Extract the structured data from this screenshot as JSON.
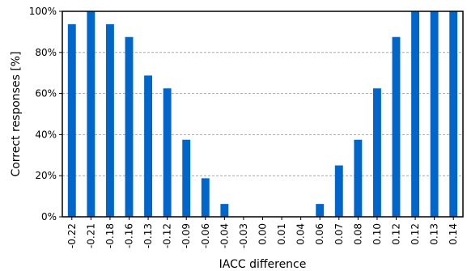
{
  "chart_data": {
    "type": "bar",
    "xlabel": "IACC difference",
    "ylabel": "Correct responses [%]",
    "ylim": [
      0,
      100
    ],
    "yticks": [
      "0%",
      "20%",
      "40%",
      "60%",
      "80%",
      "100%"
    ],
    "grid": "horizontal dashed",
    "bar_color": "#0066cc",
    "categories": [
      "-0.22",
      "-0.21",
      "-0.18",
      "-0.16",
      "-0.13",
      "-0.12",
      "-0.09",
      "-0.06",
      "-0.04",
      "-0.03",
      "0.00",
      "0.01",
      "0.04",
      "0.06",
      "0.07",
      "0.08",
      "0.10",
      "0.12",
      "0.12",
      "0.13",
      "0.14"
    ],
    "values": [
      93.75,
      100,
      93.75,
      87.5,
      68.75,
      62.5,
      37.5,
      18.75,
      6.25,
      0,
      0,
      0,
      0,
      6.25,
      25,
      37.5,
      62.5,
      87.5,
      100,
      100,
      100
    ]
  }
}
